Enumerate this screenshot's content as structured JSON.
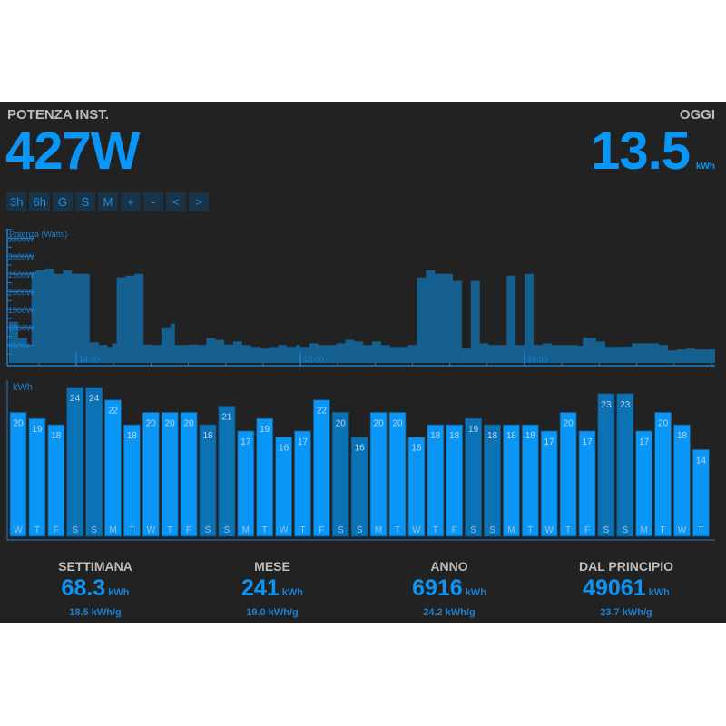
{
  "header": {
    "power_label": "POTENZA INST.",
    "power_value": "427W",
    "today_label": "OGGI",
    "today_value": "13.5",
    "today_unit": "kWh"
  },
  "range_buttons": [
    {
      "label": "3h"
    },
    {
      "label": "6h"
    },
    {
      "label": "G"
    },
    {
      "label": "S"
    },
    {
      "label": "M"
    },
    {
      "label": "+"
    },
    {
      "label": "-"
    },
    {
      "label": "<"
    },
    {
      "label": ">"
    }
  ],
  "colors": {
    "background": "#222222",
    "accent": "#0a96f6",
    "area_fill": "#16608f",
    "axis": "#1a7fd0",
    "bar_weekday": "#0a96f6",
    "bar_weekend": "#0b72b5",
    "label_gray": "#bdbdbd"
  },
  "chart_data": [
    {
      "type": "area",
      "title": "",
      "ylabel": "Potenza (Watts)",
      "xlabel": "",
      "ylim": [
        0,
        3700
      ],
      "y_ticks": [
        "500W",
        "1000W",
        "1500W",
        "2000W",
        "2500W",
        "3000W",
        "3500W"
      ],
      "x_ticks": [
        "14:00",
        "15:00",
        "16:00"
      ],
      "x_range_hours": [
        13.7,
        16.85
      ],
      "series": [
        {
          "name": "Potenza",
          "x": [
            13.7,
            13.74,
            13.78,
            13.8,
            13.82,
            13.86,
            13.9,
            13.94,
            13.98,
            14.02,
            14.06,
            14.1,
            14.14,
            14.16,
            14.18,
            14.22,
            14.26,
            14.28,
            14.3,
            14.34,
            14.38,
            14.42,
            14.44,
            14.46,
            14.5,
            14.54,
            14.58,
            14.62,
            14.66,
            14.7,
            14.74,
            14.78,
            14.82,
            14.86,
            14.9,
            14.94,
            14.98,
            15.0,
            15.04,
            15.08,
            15.12,
            15.16,
            15.2,
            15.24,
            15.28,
            15.32,
            15.36,
            15.4,
            15.44,
            15.48,
            15.52,
            15.56,
            15.6,
            15.64,
            15.68,
            15.7,
            15.72,
            15.74,
            15.76,
            15.8,
            15.84,
            15.88,
            15.92,
            15.96,
            16.0,
            16.04,
            16.08,
            16.1,
            16.12,
            16.16,
            16.2,
            16.24,
            16.26,
            16.28,
            16.32,
            16.36,
            16.4,
            16.44,
            16.48,
            16.52,
            16.56,
            16.6,
            16.64,
            16.68,
            16.72,
            16.76,
            16.8,
            16.85
          ],
          "values": [
            1150,
            700,
            500,
            2550,
            2600,
            2650,
            2500,
            2600,
            2500,
            2500,
            580,
            500,
            450,
            550,
            2400,
            2450,
            2500,
            2500,
            520,
            500,
            1000,
            1100,
            500,
            500,
            520,
            500,
            700,
            650,
            520,
            600,
            500,
            450,
            400,
            450,
            500,
            450,
            500,
            450,
            550,
            500,
            500,
            550,
            650,
            600,
            500,
            600,
            500,
            450,
            450,
            500,
            2400,
            2600,
            2500,
            2500,
            2300,
            2300,
            400,
            400,
            2300,
            550,
            500,
            500,
            2450,
            500,
            2500,
            500,
            550,
            550,
            500,
            500,
            500,
            480,
            720,
            700,
            600,
            450,
            450,
            460,
            550,
            550,
            550,
            500,
            350,
            380,
            400,
            380,
            380,
            400
          ]
        }
      ]
    },
    {
      "type": "bar",
      "title": "",
      "ylabel": "kWh",
      "xlabel": "",
      "ylim": [
        0,
        24
      ],
      "categories": [
        "W",
        "T",
        "F",
        "S",
        "S",
        "M",
        "T",
        "W",
        "T",
        "F",
        "S",
        "S",
        "M",
        "T",
        "W",
        "T",
        "F",
        "S",
        "S",
        "M",
        "T",
        "W",
        "T",
        "F",
        "S",
        "S",
        "M",
        "T",
        "W",
        "T",
        "F",
        "S",
        "S",
        "M",
        "T",
        "W",
        "T"
      ],
      "values": [
        20,
        19,
        18,
        24,
        24,
        22,
        18,
        20,
        20,
        20,
        18,
        21,
        17,
        19,
        16,
        17,
        22,
        20,
        16,
        20,
        20,
        16,
        18,
        18,
        19,
        18,
        18,
        18,
        17,
        20,
        17,
        23,
        23,
        17,
        20,
        18,
        14
      ],
      "weekend": [
        false,
        false,
        false,
        true,
        true,
        false,
        false,
        false,
        false,
        false,
        true,
        true,
        false,
        false,
        false,
        false,
        false,
        true,
        true,
        false,
        false,
        false,
        false,
        false,
        true,
        true,
        false,
        false,
        false,
        false,
        false,
        true,
        true,
        false,
        false,
        false,
        false
      ]
    }
  ],
  "stats": [
    {
      "title": "SETTIMANA",
      "value": "68.3",
      "unit": "kWh",
      "avg": "18.5 kWh/g"
    },
    {
      "title": "MESE",
      "value": "241",
      "unit": "kWh",
      "avg": "19.0 kWh/g"
    },
    {
      "title": "ANNO",
      "value": "6916",
      "unit": "kWh",
      "avg": "24.2 kWh/g"
    },
    {
      "title": "DAL PRINCIPIO",
      "value": "49061",
      "unit": "kWh",
      "avg": "23.7 kWh/g"
    }
  ]
}
